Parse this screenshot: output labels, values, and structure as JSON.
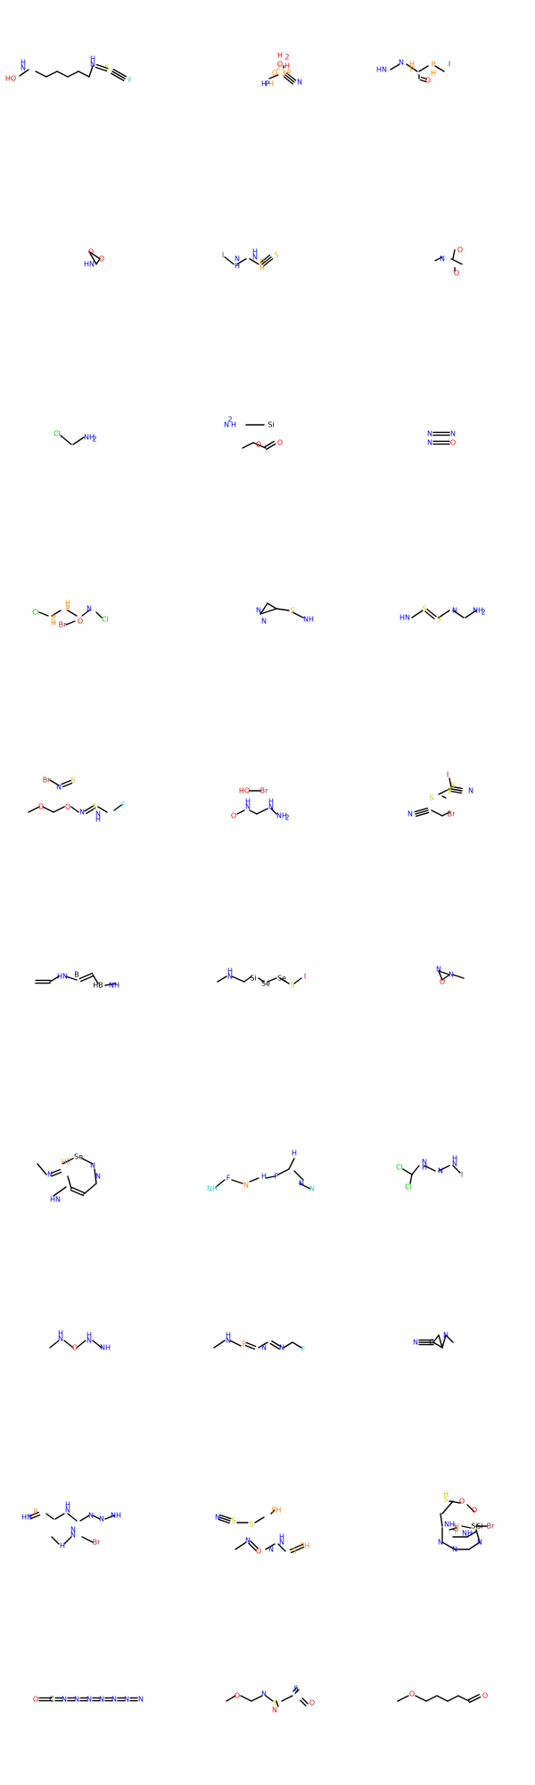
{
  "colors": {
    "C": "#000000",
    "N": "#0000ff",
    "O": "#ff0000",
    "F": "#33cccc",
    "Cl": "#00cc00",
    "Br": "#a52a2a",
    "I": "#940094",
    "P": "#ff8000",
    "S": "#cccc00",
    "Se": "#000000",
    "Si": "#000000",
    "B": "#000000",
    "H": "#000000"
  },
  "molecules": [
    {
      "id": "m1",
      "labels": [
        "HO",
        "N",
        "H",
        "N",
        "H",
        "S",
        "F"
      ]
    },
    {
      "id": "m2",
      "labels": [
        "H",
        "2",
        "O",
        "H",
        "2",
        "O",
        "H",
        "P",
        "H",
        "3",
        "P",
        "N"
      ]
    },
    {
      "id": "m3",
      "labels": [
        "HN",
        "N",
        "P",
        "H",
        "P",
        "H",
        "I",
        "O"
      ]
    },
    {
      "id": "m4",
      "labels": [
        "O",
        "O",
        "HN"
      ]
    },
    {
      "id": "m5",
      "labels": [
        "I",
        "N",
        "H",
        "N",
        "H",
        "P",
        "H",
        "S"
      ]
    },
    {
      "id": "m6",
      "labels": [
        "N",
        "O",
        "O"
      ]
    },
    {
      "id": "m7",
      "labels": [
        "Cl",
        "NH",
        "2"
      ]
    },
    {
      "id": "m8",
      "labels": [
        "H",
        "2",
        "N",
        "Si",
        "O",
        "O"
      ]
    },
    {
      "id": "m9",
      "labels": [
        "N",
        "N",
        "N",
        "O"
      ]
    },
    {
      "id": "m10",
      "labels": [
        "Cl",
        "P",
        "H",
        "P",
        "H",
        "N",
        "Cl",
        "Br",
        "O"
      ]
    },
    {
      "id": "m11",
      "labels": [
        "N",
        "N",
        "S",
        "NH"
      ]
    },
    {
      "id": "m12",
      "labels": [
        "HN",
        "S",
        "S",
        "N",
        "NH",
        "2"
      ]
    },
    {
      "id": "m13",
      "labels": [
        "Br",
        "N",
        "S",
        "O",
        "O",
        "N",
        "S",
        "N",
        "H",
        "F"
      ]
    },
    {
      "id": "m14",
      "labels": [
        "HO",
        "Br",
        "O",
        "N",
        "H",
        "N",
        "H",
        "NH",
        "2"
      ]
    },
    {
      "id": "m15",
      "labels": [
        "I",
        "S",
        "S",
        "S",
        "N",
        "N",
        "Br"
      ]
    },
    {
      "id": "m16",
      "labels": [
        "HN",
        "B",
        "HB",
        "NH"
      ]
    },
    {
      "id": "m17",
      "labels": [
        "N",
        "H",
        "Si",
        "Se",
        "Se",
        "S",
        "I"
      ]
    },
    {
      "id": "m18",
      "labels": [
        "N",
        "O",
        "N"
      ]
    },
    {
      "id": "m19",
      "labels": [
        "N",
        "HP",
        "Se",
        "N",
        "N",
        "HN"
      ]
    },
    {
      "id": "m20",
      "labels": [
        "NH",
        "F",
        "N",
        "H",
        "P",
        "H",
        "N",
        "N",
        "HN",
        "F"
      ]
    },
    {
      "id": "m21",
      "labels": [
        "Cl",
        "Cl",
        "N",
        "H",
        "N",
        "N",
        "H",
        "I"
      ]
    },
    {
      "id": "m22",
      "labels": [
        "N",
        "H",
        "O",
        "N",
        "H",
        "NH"
      ]
    },
    {
      "id": "m23",
      "labels": [
        "N",
        "H",
        "P",
        "N",
        "N",
        "F"
      ]
    },
    {
      "id": "m24",
      "labels": [
        "N",
        "C",
        "N"
      ]
    },
    {
      "id": "m25",
      "labels": [
        "P",
        "HN",
        "N",
        "H",
        "N",
        "N",
        "NH",
        "N",
        "N",
        "H",
        "Br"
      ]
    },
    {
      "id": "m26",
      "labels": [
        "N",
        "S",
        "S",
        "PH",
        "N",
        "O",
        "N",
        "N",
        "H",
        "S",
        "PH"
      ]
    },
    {
      "id": "m27",
      "labels": [
        "S",
        "H",
        "O",
        "O",
        "Si",
        "NH",
        "2",
        "P",
        "H",
        "NH",
        "Si",
        "Br",
        "N",
        "N",
        "N"
      ]
    },
    {
      "id": "m28",
      "labels": [
        "O",
        "C",
        "N",
        "N",
        "N",
        "N",
        "N",
        "N",
        "N"
      ]
    },
    {
      "id": "m29",
      "labels": [
        "O",
        "N",
        "S",
        "N",
        "S",
        "O"
      ]
    },
    {
      "id": "m30",
      "labels": [
        "O",
        "O"
      ]
    }
  ]
}
